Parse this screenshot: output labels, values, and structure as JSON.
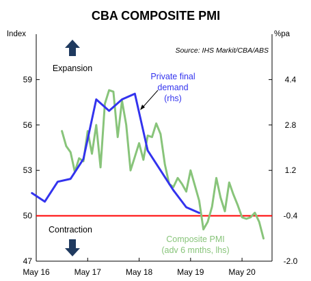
{
  "chart_data": {
    "type": "line",
    "title": "CBA COMPOSITE PMI",
    "source": "Source: IHS Markit/CBA/ABS",
    "left_axis": {
      "unit": "Index",
      "ylim": [
        47,
        62
      ],
      "ticks": [
        47,
        50,
        53,
        56,
        59
      ],
      "tick_labels": [
        "47",
        "50",
        "53",
        "56",
        "59"
      ]
    },
    "right_axis": {
      "unit": "%pa",
      "ylim": [
        -2.0,
        6.0
      ],
      "ticks": [
        -2.0,
        -0.4,
        1.2,
        2.8,
        4.4
      ],
      "tick_labels": [
        "-2.0",
        "-0.4",
        "1.2",
        "2.8",
        "4.4"
      ]
    },
    "x_axis": {
      "tick_labels": [
        "May 16",
        "May 17",
        "May 18",
        "May 19",
        "May 20"
      ],
      "tick_positions": [
        0,
        12,
        24,
        36,
        48
      ],
      "xlim": [
        0,
        55
      ],
      "unit_note": "months since May 16"
    },
    "reference_line": {
      "axis": "left",
      "value": 50,
      "color": "#ff0000"
    },
    "series": [
      {
        "name": "Private final demand (rhs)",
        "axis": "right",
        "color": "#3333ee",
        "x": [
          -1,
          2,
          5,
          8,
          11,
          14,
          17,
          20,
          23,
          26,
          29,
          32,
          35,
          38
        ],
        "values": [
          0.4,
          0.1,
          0.8,
          0.9,
          1.6,
          3.7,
          3.3,
          3.7,
          3.9,
          1.9,
          1.2,
          0.5,
          -0.1,
          -0.3
        ]
      },
      {
        "name": "Composite PMI (adv 6 mnths, lhs)",
        "axis": "left",
        "color": "#88c47a",
        "x": [
          6,
          7,
          8,
          9,
          10,
          11,
          12,
          13,
          14,
          15,
          16,
          17,
          18,
          19,
          20,
          21,
          22,
          23,
          24,
          25,
          26,
          27,
          28,
          29,
          30,
          31,
          32,
          33,
          34,
          35,
          36,
          37,
          38,
          39,
          40,
          41,
          42,
          43,
          44,
          45,
          46,
          47,
          48,
          49,
          50,
          51,
          52,
          53
        ],
        "values": [
          55.6,
          54.6,
          54.2,
          52.9,
          53.8,
          53.6,
          55.6,
          54.1,
          56.0,
          53.2,
          57.4,
          58.3,
          58.2,
          55.2,
          57.6,
          56.0,
          53.0,
          53.9,
          54.8,
          53.7,
          55.3,
          55.2,
          56.1,
          55.4,
          53.4,
          52.1,
          51.9,
          52.5,
          52.1,
          51.6,
          53.0,
          52.0,
          51.0,
          49.1,
          49.6,
          50.6,
          52.5,
          51.2,
          50.3,
          52.2,
          51.4,
          50.7,
          49.9,
          49.8,
          49.9,
          50.2,
          49.6,
          48.5
        ]
      }
    ],
    "annotations": {
      "expansion": "Expansion",
      "contraction": "Contraction",
      "private_label": [
        "Private final",
        "demand",
        "(rhs)"
      ],
      "pmi_label": [
        "Composite PMI",
        "(adv 6 mnths, lhs)"
      ]
    },
    "grid": false,
    "legend": "none"
  }
}
